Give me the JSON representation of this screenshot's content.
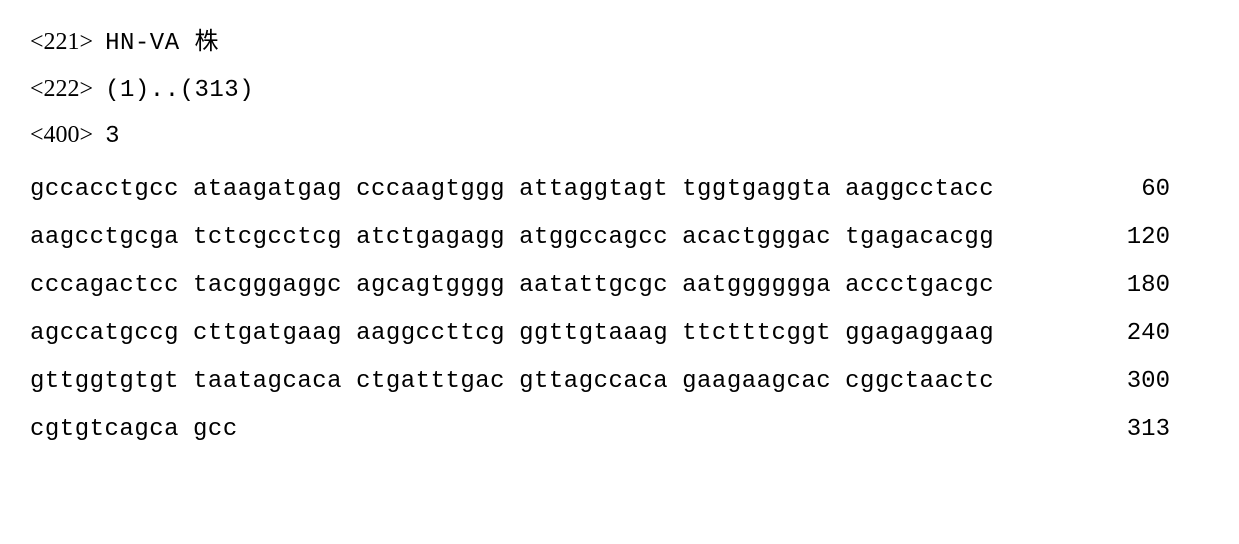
{
  "headers": [
    {
      "tag": "<221>",
      "value": "HN-VA 株"
    },
    {
      "tag": "<222>",
      "value": "(1)..(313)"
    },
    {
      "tag": "<400>",
      "value": "3"
    }
  ],
  "sequence_rows": [
    {
      "blocks": [
        "gccacctgcc",
        "ataagatgag",
        "cccaagtggg",
        "attaggtagt",
        "tggtgaggta",
        "aaggcctacc"
      ],
      "num": "60"
    },
    {
      "blocks": [
        "aagcctgcga",
        "tctcgcctcg",
        "atctgagagg",
        "atggccagcc",
        "acactgggac",
        "tgagacacgg"
      ],
      "num": "120"
    },
    {
      "blocks": [
        "cccagactcc",
        "tacgggaggc",
        "agcagtgggg",
        "aatattgcgc",
        "aatgggggga",
        "accctgacgc"
      ],
      "num": "180"
    },
    {
      "blocks": [
        "agccatgccg",
        "cttgatgaag",
        "aaggccttcg",
        "ggttgtaaag",
        "ttctttcggt",
        "ggagaggaag"
      ],
      "num": "240"
    },
    {
      "blocks": [
        "gttggtgtgt",
        "taatagcaca",
        "ctgatttgac",
        "gttagccaca",
        "gaagaagcac",
        "cggctaactc"
      ],
      "num": "300"
    },
    {
      "blocks": [
        "cgtgtcagca",
        "gcc"
      ],
      "num": "313"
    }
  ],
  "colors": {
    "text": "#000000",
    "background": "#ffffff"
  },
  "font": {
    "base_size_pt": 18,
    "mono_family": "Courier New",
    "cjk_family": "SimSun"
  }
}
